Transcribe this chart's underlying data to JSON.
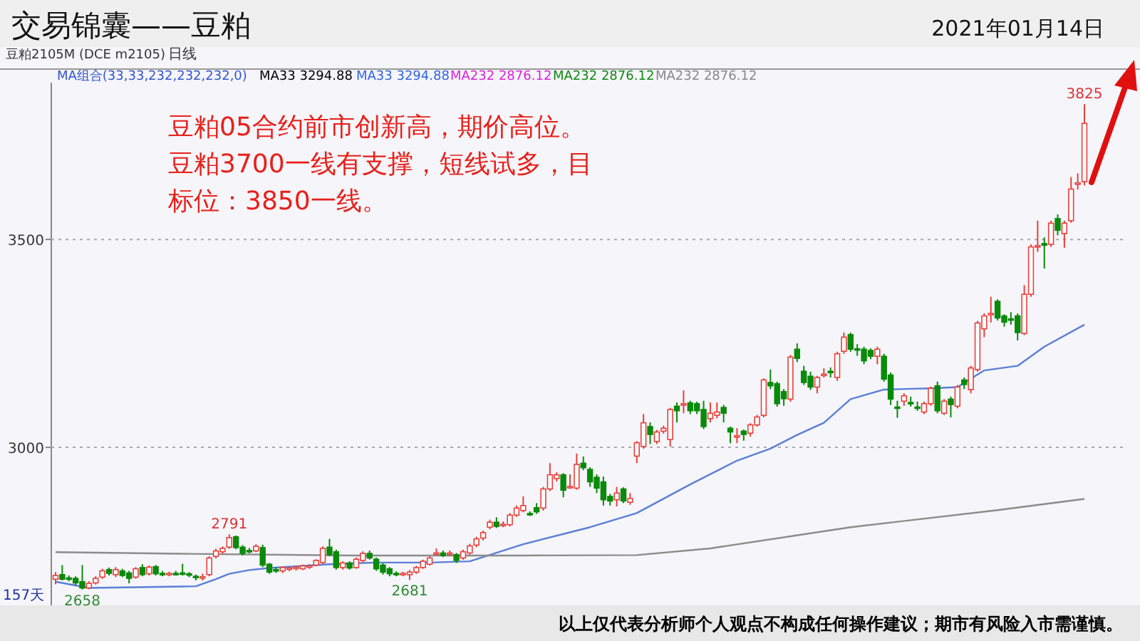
{
  "chart_data": {
    "type": "candlestick",
    "title": "交易锦囊——豆粕",
    "subtitle": "2021年01月14日",
    "categories": [
      null,
      null,
      null,
      null,
      null,
      null,
      null,
      null,
      null,
      null,
      null,
      null,
      null,
      null,
      null,
      null,
      null,
      null,
      null,
      null,
      null,
      null,
      null,
      null,
      null,
      null,
      null,
      null,
      null,
      null,
      null,
      null,
      null,
      null,
      null,
      null,
      null,
      null,
      null,
      null,
      null,
      null,
      null,
      null,
      null,
      null,
      null,
      null,
      null,
      null,
      null,
      null,
      null,
      null,
      null,
      null,
      null,
      null,
      null,
      null,
      null,
      null,
      null,
      null,
      null,
      null,
      null,
      null,
      null,
      null,
      null,
      null,
      null,
      null,
      null,
      null,
      null,
      null,
      null,
      null,
      null,
      null,
      null,
      null,
      null,
      null,
      null,
      null,
      null,
      null,
      null,
      null,
      null,
      null,
      null,
      null,
      null,
      null,
      null,
      null,
      null,
      null,
      null,
      null,
      null,
      null,
      null,
      null,
      null,
      null,
      null,
      null,
      null,
      null,
      null,
      null,
      null,
      null,
      null,
      null,
      null,
      null,
      null,
      null,
      null,
      null,
      null,
      null,
      null,
      null,
      null,
      null,
      null,
      null,
      null,
      null,
      null,
      null,
      null,
      null,
      null,
      null,
      null,
      null,
      null,
      null,
      null,
      null,
      null,
      null,
      null,
      null,
      null,
      null,
      null
    ],
    "ohlc": [
      [
        2683,
        2700,
        2671,
        2692
      ],
      [
        2694,
        2717,
        2680,
        2683
      ],
      [
        2686,
        2692,
        2678,
        2685
      ],
      [
        2685,
        2690,
        2668,
        2674
      ],
      [
        2677,
        2717,
        2658,
        2662
      ],
      [
        2662,
        2678,
        2659,
        2673
      ],
      [
        2674,
        2690,
        2670,
        2685
      ],
      [
        2688,
        2708,
        2684,
        2703
      ],
      [
        2706,
        2711,
        2692,
        2697
      ],
      [
        2694,
        2712,
        2688,
        2706
      ],
      [
        2703,
        2708,
        2688,
        2692
      ],
      [
        2698,
        2703,
        2673,
        2685
      ],
      [
        2688,
        2712,
        2684,
        2708
      ],
      [
        2711,
        2719,
        2690,
        2694
      ],
      [
        2696,
        2716,
        2692,
        2712
      ],
      [
        2713,
        2717,
        2692,
        2696
      ],
      [
        2697,
        2703,
        2690,
        2696
      ],
      [
        2696,
        2701,
        2690,
        2697
      ],
      [
        2697,
        2703,
        2692,
        2696
      ],
      [
        2698,
        2720,
        2692,
        2697
      ],
      [
        2696,
        2700,
        2688,
        2694
      ],
      [
        2690,
        2694,
        2680,
        2688
      ],
      [
        2687,
        2696,
        2680,
        2689
      ],
      [
        2694,
        2738,
        2690,
        2734
      ],
      [
        2738,
        2756,
        2733,
        2751
      ],
      [
        2749,
        2762,
        2745,
        2757
      ],
      [
        2760,
        2791,
        2756,
        2783
      ],
      [
        2785,
        2788,
        2755,
        2759
      ],
      [
        2760,
        2765,
        2740,
        2745
      ],
      [
        2752,
        2758,
        2745,
        2751
      ],
      [
        2751,
        2767,
        2748,
        2762
      ],
      [
        2759,
        2766,
        2712,
        2717
      ],
      [
        2719,
        2722,
        2696,
        2700
      ],
      [
        2706,
        2712,
        2698,
        2705
      ],
      [
        2703,
        2714,
        2698,
        2711
      ],
      [
        2709,
        2714,
        2702,
        2710
      ],
      [
        2711,
        2716,
        2704,
        2712
      ],
      [
        2708,
        2718,
        2705,
        2715
      ],
      [
        2714,
        2719,
        2708,
        2715
      ],
      [
        2717,
        2731,
        2714,
        2728
      ],
      [
        2723,
        2762,
        2720,
        2757
      ],
      [
        2760,
        2780,
        2738,
        2742
      ],
      [
        2749,
        2754,
        2706,
        2711
      ],
      [
        2711,
        2726,
        2706,
        2722
      ],
      [
        2722,
        2726,
        2706,
        2710
      ],
      [
        2711,
        2735,
        2708,
        2731
      ],
      [
        2728,
        2750,
        2724,
        2745
      ],
      [
        2745,
        2752,
        2730,
        2734
      ],
      [
        2731,
        2735,
        2703,
        2708
      ],
      [
        2717,
        2721,
        2694,
        2700
      ],
      [
        2708,
        2712,
        2690,
        2696
      ],
      [
        2697,
        2702,
        2690,
        2695
      ],
      [
        2696,
        2701,
        2690,
        2697
      ],
      [
        2694,
        2705,
        2681,
        2700
      ],
      [
        2700,
        2715,
        2696,
        2711
      ],
      [
        2711,
        2730,
        2708,
        2726
      ],
      [
        2719,
        2738,
        2716,
        2734
      ],
      [
        2745,
        2757,
        2740,
        2746
      ],
      [
        2746,
        2752,
        2736,
        2740
      ],
      [
        2745,
        2752,
        2738,
        2746
      ],
      [
        2742,
        2746,
        2722,
        2728
      ],
      [
        2734,
        2754,
        2730,
        2749
      ],
      [
        2746,
        2768,
        2742,
        2763
      ],
      [
        2765,
        2785,
        2760,
        2780
      ],
      [
        2782,
        2800,
        2776,
        2795
      ],
      [
        2808,
        2826,
        2803,
        2820
      ],
      [
        2820,
        2832,
        2806,
        2810
      ],
      [
        2814,
        2822,
        2808,
        2815
      ],
      [
        2814,
        2842,
        2810,
        2837
      ],
      [
        2837,
        2860,
        2833,
        2854
      ],
      [
        2848,
        2882,
        2844,
        2860
      ],
      [
        2841,
        2846,
        2835,
        2840
      ],
      [
        2855,
        2866,
        2840,
        2845
      ],
      [
        2854,
        2905,
        2848,
        2900
      ],
      [
        2900,
        2962,
        2895,
        2934
      ],
      [
        2925,
        2940,
        2918,
        2934
      ],
      [
        2934,
        2938,
        2880,
        2897
      ],
      [
        2905,
        2935,
        2900,
        2906
      ],
      [
        2902,
        2985,
        2898,
        2959
      ],
      [
        2962,
        2978,
        2945,
        2951
      ],
      [
        2947,
        2952,
        2905,
        2917
      ],
      [
        2928,
        2935,
        2890,
        2902
      ],
      [
        2917,
        2930,
        2860,
        2874
      ],
      [
        2882,
        2888,
        2860,
        2871
      ],
      [
        2874,
        2905,
        2858,
        2890
      ],
      [
        2900,
        2904,
        2866,
        2871
      ],
      [
        2868,
        2890,
        2862,
        2877
      ],
      [
        2979,
        3015,
        2962,
        3011
      ],
      [
        3002,
        3080,
        2997,
        3059
      ],
      [
        3050,
        3060,
        3008,
        3031
      ],
      [
        3014,
        3042,
        3008,
        3037
      ],
      [
        3039,
        3052,
        3033,
        3046
      ],
      [
        3019,
        3095,
        3002,
        3091
      ],
      [
        3099,
        3108,
        3060,
        3088
      ],
      [
        3103,
        3137,
        3082,
        3105
      ],
      [
        3107,
        3112,
        3080,
        3088
      ],
      [
        3105,
        3110,
        3080,
        3088
      ],
      [
        3091,
        3112,
        3044,
        3050
      ],
      [
        3069,
        3108,
        3060,
        3082
      ],
      [
        3077,
        3108,
        3070,
        3085
      ],
      [
        3096,
        3102,
        3060,
        3082
      ],
      [
        3046,
        3050,
        3010,
        3037
      ],
      [
        3027,
        3046,
        3010,
        3028
      ],
      [
        3039,
        3043,
        3016,
        3031
      ],
      [
        3034,
        3058,
        3026,
        3054
      ],
      [
        3054,
        3078,
        3050,
        3073
      ],
      [
        3077,
        3166,
        3072,
        3162
      ],
      [
        3156,
        3187,
        3140,
        3148
      ],
      [
        3153,
        3158,
        3098,
        3105
      ],
      [
        3134,
        3140,
        3100,
        3117
      ],
      [
        3116,
        3222,
        3110,
        3217
      ],
      [
        3236,
        3250,
        3205,
        3214
      ],
      [
        3183,
        3196,
        3150,
        3156
      ],
      [
        3171,
        3182,
        3138,
        3145
      ],
      [
        3145,
        3172,
        3130,
        3168
      ],
      [
        3175,
        3190,
        3168,
        3176
      ],
      [
        3183,
        3192,
        3168,
        3182
      ],
      [
        3168,
        3230,
        3160,
        3225
      ],
      [
        3231,
        3276,
        3225,
        3265
      ],
      [
        3271,
        3276,
        3230,
        3236
      ],
      [
        3237,
        3248,
        3220,
        3236
      ],
      [
        3236,
        3242,
        3200,
        3208
      ],
      [
        3233,
        3238,
        3212,
        3219
      ],
      [
        3219,
        3242,
        3200,
        3236
      ],
      [
        3219,
        3225,
        3158,
        3164
      ],
      [
        3174,
        3180,
        3102,
        3116
      ],
      [
        3097,
        3112,
        3071,
        3096
      ],
      [
        3111,
        3130,
        3100,
        3124
      ],
      [
        3108,
        3122,
        3098,
        3107
      ],
      [
        3097,
        3110,
        3088,
        3096
      ],
      [
        3085,
        3110,
        3080,
        3105
      ],
      [
        3105,
        3146,
        3100,
        3142
      ],
      [
        3148,
        3158,
        3082,
        3088
      ],
      [
        3082,
        3116,
        3078,
        3111
      ],
      [
        3116,
        3122,
        3072,
        3103
      ],
      [
        3099,
        3150,
        3094,
        3145
      ],
      [
        3162,
        3168,
        3140,
        3151
      ],
      [
        3139,
        3196,
        3130,
        3191
      ],
      [
        3187,
        3304,
        3182,
        3299
      ],
      [
        3285,
        3322,
        3265,
        3316
      ],
      [
        3321,
        3362,
        3300,
        3322
      ],
      [
        3351,
        3356,
        3305,
        3311
      ],
      [
        3316,
        3320,
        3290,
        3301
      ],
      [
        3309,
        3325,
        3295,
        3308
      ],
      [
        3316,
        3322,
        3257,
        3276
      ],
      [
        3274,
        3390,
        3270,
        3368
      ],
      [
        3368,
        3488,
        3362,
        3482
      ],
      [
        3484,
        3545,
        3470,
        3485
      ],
      [
        3490,
        3505,
        3430,
        3486
      ],
      [
        3488,
        3545,
        3482,
        3539
      ],
      [
        3550,
        3560,
        3510,
        3522
      ],
      [
        3514,
        3545,
        3480,
        3539
      ],
      [
        3545,
        3650,
        3540,
        3621
      ],
      [
        3634,
        3659,
        3620,
        3636
      ],
      [
        3639,
        3825,
        3630,
        3779
      ]
    ],
    "series": [
      {
        "type": "line",
        "color": "#5b7fd6",
        "values": [
          2677,
          null,
          null,
          null,
          null,
          2662,
          null,
          null,
          null,
          null,
          null,
          null,
          null,
          null,
          null,
          null,
          null,
          null,
          null,
          null,
          null,
          2666,
          null,
          null,
          2683,
          null,
          2696,
          null,
          null,
          2705,
          null,
          null,
          2710,
          null,
          null,
          null,
          null,
          null,
          null,
          null,
          null,
          2719,
          null,
          null,
          null,
          null,
          null,
          null,
          2723,
          null,
          null,
          null,
          null,
          null,
          null,
          null,
          2723,
          null,
          null,
          null,
          null,
          null,
          2726,
          null,
          null,
          null,
          null,
          null,
          null,
          null,
          2767,
          null,
          null,
          null,
          null,
          null,
          null,
          null,
          null,
          null,
          2808,
          null,
          null,
          null,
          null,
          null,
          null,
          2842,
          null,
          null,
          null,
          null,
          null,
          null,
          null,
          2911,
          null,
          null,
          null,
          null,
          null,
          null,
          2968,
          null,
          null,
          null,
          null,
          2997,
          null,
          null,
          null,
          3030,
          null,
          null,
          null,
          3059,
          null,
          null,
          null,
          3116,
          null,
          null,
          null,
          null,
          3139,
          null,
          null,
          null,
          null,
          null,
          null,
          3142,
          null,
          null,
          null,
          3145,
          null,
          null,
          null,
          3185,
          null,
          null,
          null,
          null,
          3196,
          null,
          null,
          null,
          3242,
          null,
          null,
          null,
          null,
          null,
          3295
        ]
      },
      {
        "type": "line",
        "color": "#8c8c8c",
        "values": [
          2748,
          null,
          null,
          null,
          null,
          null,
          null,
          null,
          null,
          null,
          null,
          null,
          null,
          null,
          null,
          null,
          null,
          null,
          null,
          null,
          2744,
          null,
          null,
          null,
          null,
          null,
          null,
          null,
          null,
          null,
          null,
          null,
          null,
          null,
          null,
          null,
          null,
          null,
          null,
          null,
          null,
          null,
          null,
          null,
          null,
          2740,
          null,
          null,
          null,
          null,
          null,
          null,
          null,
          null,
          null,
          null,
          null,
          null,
          null,
          null,
          null,
          null,
          null,
          null,
          null,
          null,
          null,
          null,
          null,
          null,
          2740,
          null,
          null,
          null,
          null,
          null,
          null,
          null,
          null,
          null,
          null,
          null,
          null,
          null,
          null,
          null,
          null,
          2741,
          null,
          null,
          null,
          null,
          null,
          null,
          null,
          null,
          null,
          null,
          2757,
          null,
          null,
          null,
          null,
          null,
          null,
          null,
          null,
          null,
          null,
          null,
          null,
          null,
          null,
          null,
          null,
          null,
          null,
          null,
          null,
          2808,
          null,
          null,
          null,
          null,
          null,
          null,
          null,
          null,
          null,
          null,
          null,
          null,
          null,
          null,
          null,
          null,
          null,
          null,
          null,
          null,
          null,
          2849,
          null,
          null,
          null,
          null,
          null,
          null,
          null,
          null,
          null,
          null,
          null,
          null,
          2876
        ]
      }
    ],
    "ylim": [
      2620,
      3877
    ],
    "yticks": [
      3000,
      3500
    ],
    "grid": "y",
    "annotations": [
      "豆粕2105M (DCE m2105)",
      "日线",
      "MA组合(33,33,232,232,232,0)",
      "MA33 3294.88",
      "MA33 3294.88",
      "MA232 2876.12",
      "MA232 2876.12",
      "MA232 2876.12",
      "豆粕05合约前市创新高，期价高位。豆粕3700一线有支撑，短线试多，目标位：3850一线。",
      "以上仅代表分析师个人观点不构成任何操作建议；期市有风险入市需谨慎。",
      "157天",
      {
        "text": "2791",
        "y": 2791
      },
      {
        "text": "2681",
        "y": 2681
      },
      {
        "text": "2658",
        "y": 2658
      },
      {
        "text": "3825",
        "y": 3825
      }
    ]
  }
}
